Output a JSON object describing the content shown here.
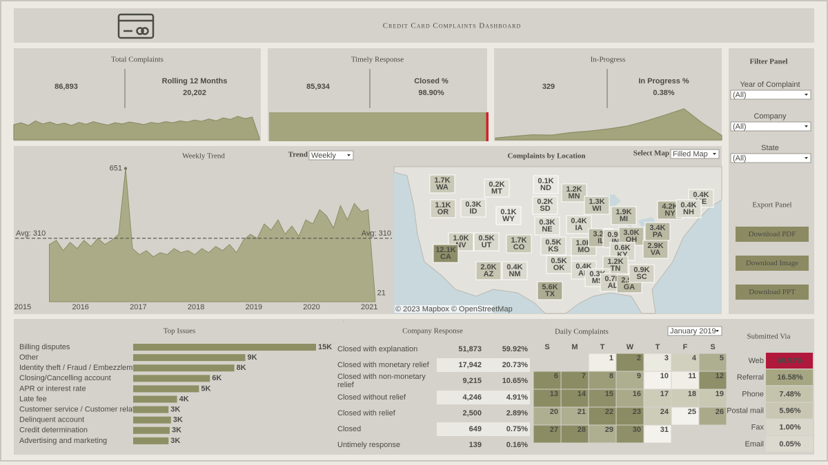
{
  "header": {
    "title": "Credit Card Complaints Dashboard"
  },
  "kpis": [
    {
      "title": "Total Complaints",
      "value": "86,893",
      "sub_label": "Rolling 12 Months",
      "sub_value": "20,202"
    },
    {
      "title": "Timely Response",
      "value": "85,934",
      "sub_label": "Closed %",
      "sub_value": "98.90%"
    },
    {
      "title": "In-Progress",
      "value": "329",
      "sub_label": "In Progress %",
      "sub_value": "0.38%"
    }
  ],
  "filter_panel": {
    "title": "Filter Panel",
    "filters": [
      {
        "label": "Year of Complaint",
        "value": "(All)"
      },
      {
        "label": "Company",
        "value": "(All)"
      },
      {
        "label": "State",
        "value": "(All)"
      }
    ]
  },
  "export_panel": {
    "title": "Export Panel",
    "buttons": [
      "Download PDF",
      "Download Image",
      "Download PPT"
    ]
  },
  "company_response": {
    "title": "Company Response",
    "rows": [
      [
        "Closed with explanation",
        "51,873",
        "59.92%"
      ],
      [
        "Closed with monetary relief",
        "17,942",
        "20.73%"
      ],
      [
        "Closed with non-monetary relief",
        "9,215",
        "10.65%"
      ],
      [
        "Closed without relief",
        "4,246",
        "4.91%"
      ],
      [
        "Closed with relief",
        "2,500",
        "2.89%"
      ],
      [
        "Closed",
        "649",
        "0.75%"
      ],
      [
        "Untimely response",
        "139",
        "0.16%"
      ]
    ]
  },
  "chart_data": [
    {
      "type": "area",
      "color": "#a4a57d",
      "ylim": [
        0,
        100
      ],
      "values": [
        40,
        45,
        38,
        50,
        42,
        47,
        40,
        44,
        38,
        46,
        41,
        48,
        43,
        39,
        45,
        42,
        47,
        44,
        40,
        46,
        43,
        48,
        45,
        50,
        47,
        52,
        49,
        55,
        50,
        58,
        54,
        62,
        56,
        60,
        5
      ]
    },
    {
      "type": "progress",
      "color": "#a4a57d",
      "xlim": [
        0,
        100
      ],
      "values": [
        98.9
      ]
    },
    {
      "type": "area",
      "color": "#a4a57d",
      "ylim": [
        0,
        100
      ],
      "values": [
        5,
        10,
        14,
        13,
        20,
        24,
        30,
        38,
        52,
        68,
        85,
        45,
        12
      ]
    },
    {
      "type": "line",
      "title": "Weekly Trend",
      "control_label": "Trend",
      "control_value": "Weekly",
      "color": "#a4a57d",
      "x": [
        2015.46,
        2015.58,
        2015.7,
        2015.82,
        2015.94,
        2016.06,
        2016.18,
        2016.3,
        2016.42,
        2016.54,
        2016.66,
        2016.78,
        2016.9,
        2017.02,
        2017.14,
        2017.26,
        2017.38,
        2017.5,
        2017.62,
        2017.74,
        2017.86,
        2017.98,
        2018.1,
        2018.22,
        2018.34,
        2018.46,
        2018.58,
        2018.7,
        2018.82,
        2018.94,
        2019.06,
        2019.18,
        2019.3,
        2019.42,
        2019.54,
        2019.66,
        2019.78,
        2019.9,
        2020.02,
        2020.14,
        2020.26,
        2020.38,
        2020.5,
        2020.62,
        2020.74,
        2020.86,
        2020.98,
        2021.1
      ],
      "values": [
        280,
        300,
        250,
        290,
        260,
        300,
        270,
        310,
        280,
        300,
        330,
        651,
        260,
        230,
        250,
        220,
        240,
        230,
        260,
        240,
        250,
        230,
        260,
        240,
        270,
        250,
        280,
        240,
        300,
        330,
        310,
        380,
        350,
        400,
        330,
        370,
        320,
        400,
        380,
        450,
        420,
        360,
        470,
        400,
        480,
        440,
        450,
        21
      ],
      "xlim": [
        2015,
        2021.2
      ],
      "xticks": [
        2015,
        2016,
        2017,
        2018,
        2019,
        2020,
        2021
      ],
      "ylim": [
        0,
        700
      ],
      "average": {
        "value": 310,
        "label": "Avg: 310"
      }
    },
    {
      "type": "map",
      "title": "Complaints by Location",
      "control_label": "Select Map",
      "control_value": "Filled Map",
      "attribution": "© 2023 Mapbox © OpenStreetMap",
      "colors": [
        "#e9e8e2",
        "#8e8f6a"
      ],
      "categories": [
        "WA",
        "OR",
        "ID",
        "MT",
        "WY",
        "NV",
        "UT",
        "CO",
        "CA",
        "AZ",
        "NM",
        "ND",
        "SD",
        "NE",
        "KS",
        "OK",
        "TX",
        "MN",
        "IA",
        "MO",
        "AR",
        "WI",
        "IL",
        "MI",
        "IN",
        "OH",
        "KY",
        "TN",
        "MS",
        "AL",
        "GA",
        "SC",
        "VA",
        "PA",
        "NY",
        "ME",
        "NH"
      ],
      "values": [
        1700,
        1100,
        300,
        200,
        100,
        1000,
        500,
        1700,
        12100,
        2000,
        400,
        100,
        200,
        300,
        500,
        500,
        5600,
        1200,
        400,
        1000,
        400,
        1300,
        3200,
        1900,
        900,
        3000,
        600,
        1200,
        300,
        700,
        2900,
        900,
        2900,
        3400,
        4200,
        400,
        400
      ],
      "value_labels": [
        "1.7K",
        "1.1K",
        "0.3K",
        "0.2K",
        "0.1K",
        "1.0K",
        "0.5K",
        "1.7K",
        "12.1K",
        "2.0K",
        "0.4K",
        "0.1K",
        "0.2K",
        "0.3K",
        "0.5K",
        "0.5K",
        "5.6K",
        "1.2K",
        "0.4K",
        "1.0K",
        "0.4K",
        "1.3K",
        "3.2K",
        "1.9K",
        "0.9K",
        "3.0K",
        "0.6K",
        "1.2K",
        "0.3K",
        "0.7K",
        "2.9K",
        "0.9K",
        "2.9K",
        "3.4K",
        "4.2K",
        "0.4K",
        "0.4K"
      ]
    },
    {
      "type": "hbar",
      "title": "Top Issues",
      "color": "#8e8f64",
      "xlim": [
        0,
        15000
      ],
      "categories": [
        "Billing disputes",
        "Other",
        "Identity theft / Fraud / Embezzlem...",
        "Closing/Cancelling account",
        "APR or interest rate",
        "Late fee",
        "Customer service / Customer relati...",
        "Delinquent account",
        "Credit determination",
        "Advertising and marketing"
      ],
      "values": [
        15000,
        9200,
        8300,
        6300,
        5400,
        3600,
        2900,
        3100,
        3000,
        2900
      ],
      "value_labels": [
        "15K",
        "9K",
        "8K",
        "6K",
        "5K",
        "4K",
        "3K",
        "3K",
        "3K",
        "3K"
      ]
    },
    {
      "type": "calendar",
      "title": "Daily Complaints",
      "month": "January 2019",
      "colors": [
        "#f4f2ec",
        "#8b8c63"
      ],
      "weekdays": [
        "S",
        "M",
        "T",
        "W",
        "T",
        "F",
        "S"
      ],
      "days": [
        1,
        2,
        3,
        4,
        5,
        6,
        7,
        8,
        9,
        10,
        11,
        12,
        13,
        14,
        15,
        16,
        17,
        18,
        19,
        20,
        21,
        22,
        23,
        24,
        25,
        26,
        27,
        28,
        29,
        30,
        31
      ],
      "values": [
        25,
        140,
        30,
        60,
        100,
        140,
        140,
        120,
        100,
        20,
        25,
        135,
        140,
        140,
        135,
        105,
        65,
        65,
        70,
        100,
        100,
        140,
        140,
        65,
        20,
        105,
        140,
        140,
        100,
        135,
        20
      ]
    },
    {
      "type": "heat_table",
      "title": "Submitted Via",
      "highlight": "#b0183c",
      "colors": [
        "#dcd9cf",
        "#a6a782"
      ],
      "categories": [
        "Web",
        "Referral",
        "Phone",
        "Postal mail",
        "Fax",
        "Email"
      ],
      "values": [
        68.92,
        16.58,
        7.48,
        5.96,
        1.0,
        0.05
      ],
      "value_labels": [
        "68.92%",
        "16.58%",
        "7.48%",
        "5.96%",
        "1.00%",
        "0.05%"
      ]
    }
  ]
}
